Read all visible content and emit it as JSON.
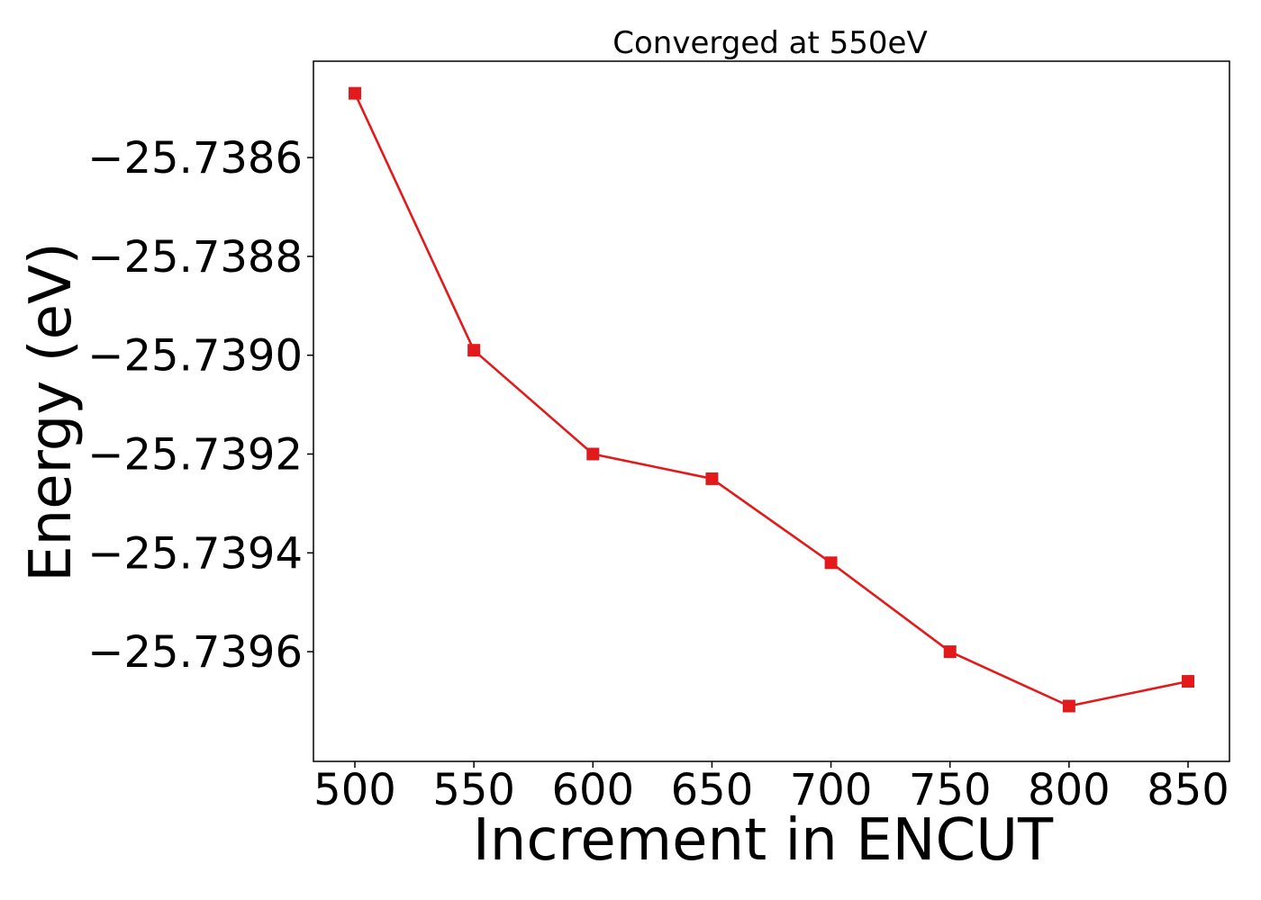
{
  "chart_data": {
    "type": "line",
    "title": "Converged at 550eV",
    "xlabel": "Increment in ENCUT",
    "ylabel": "Energy (eV)",
    "x": [
      500,
      550,
      600,
      650,
      700,
      750,
      800,
      850
    ],
    "series": [
      {
        "values": [
          -25.73847,
          -25.73899,
          -25.7392,
          -25.73925,
          -25.73942,
          -25.7396,
          -25.73971,
          -25.73966
        ],
        "color": "#e31a1c",
        "marker": "square"
      }
    ],
    "xticks": [
      500,
      550,
      600,
      650,
      700,
      750,
      800,
      850
    ],
    "xtick_labels": [
      "500",
      "550",
      "600",
      "650",
      "700",
      "750",
      "800",
      "850"
    ],
    "yticks": [
      -25.7386,
      -25.7388,
      -25.739,
      -25.7392,
      -25.7394,
      -25.7396
    ],
    "ytick_labels": [
      "−25.7386",
      "−25.7388",
      "−25.7390",
      "−25.7392",
      "−25.7394",
      "−25.7396"
    ],
    "xlim": [
      482.6,
      867.4
    ],
    "ylim": [
      -25.739822,
      -25.738405
    ],
    "grid": false,
    "legend": false
  }
}
